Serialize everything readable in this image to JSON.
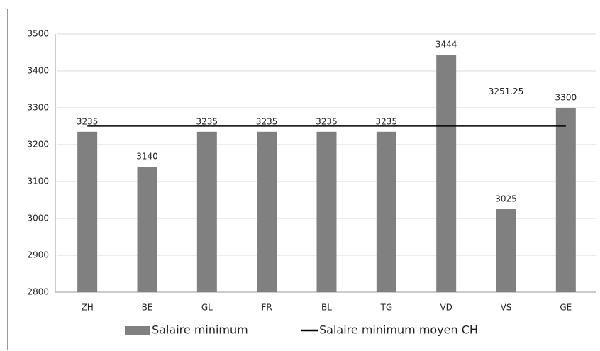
{
  "chart_data": {
    "type": "bar",
    "categories": [
      "ZH",
      "BE",
      "GL",
      "FR",
      "BL",
      "TG",
      "VD",
      "VS",
      "GE"
    ],
    "series": [
      {
        "name": "Salaire minimum",
        "type": "bar",
        "color": "#808080",
        "values": [
          3235,
          3140,
          3235,
          3235,
          3235,
          3235,
          3444,
          3025,
          3300
        ]
      },
      {
        "name": "Salaire minimum moyen CH",
        "type": "line",
        "color": "#000000",
        "values": [
          3251.25,
          3251.25,
          3251.25,
          3251.25,
          3251.25,
          3251.25,
          3251.25,
          3251.25,
          3251.25
        ]
      }
    ],
    "ylim": [
      2800,
      3500
    ],
    "yticks": [
      2800,
      2900,
      3000,
      3100,
      3200,
      3300,
      3400,
      3500
    ],
    "grid": true,
    "legend": "bottom"
  }
}
